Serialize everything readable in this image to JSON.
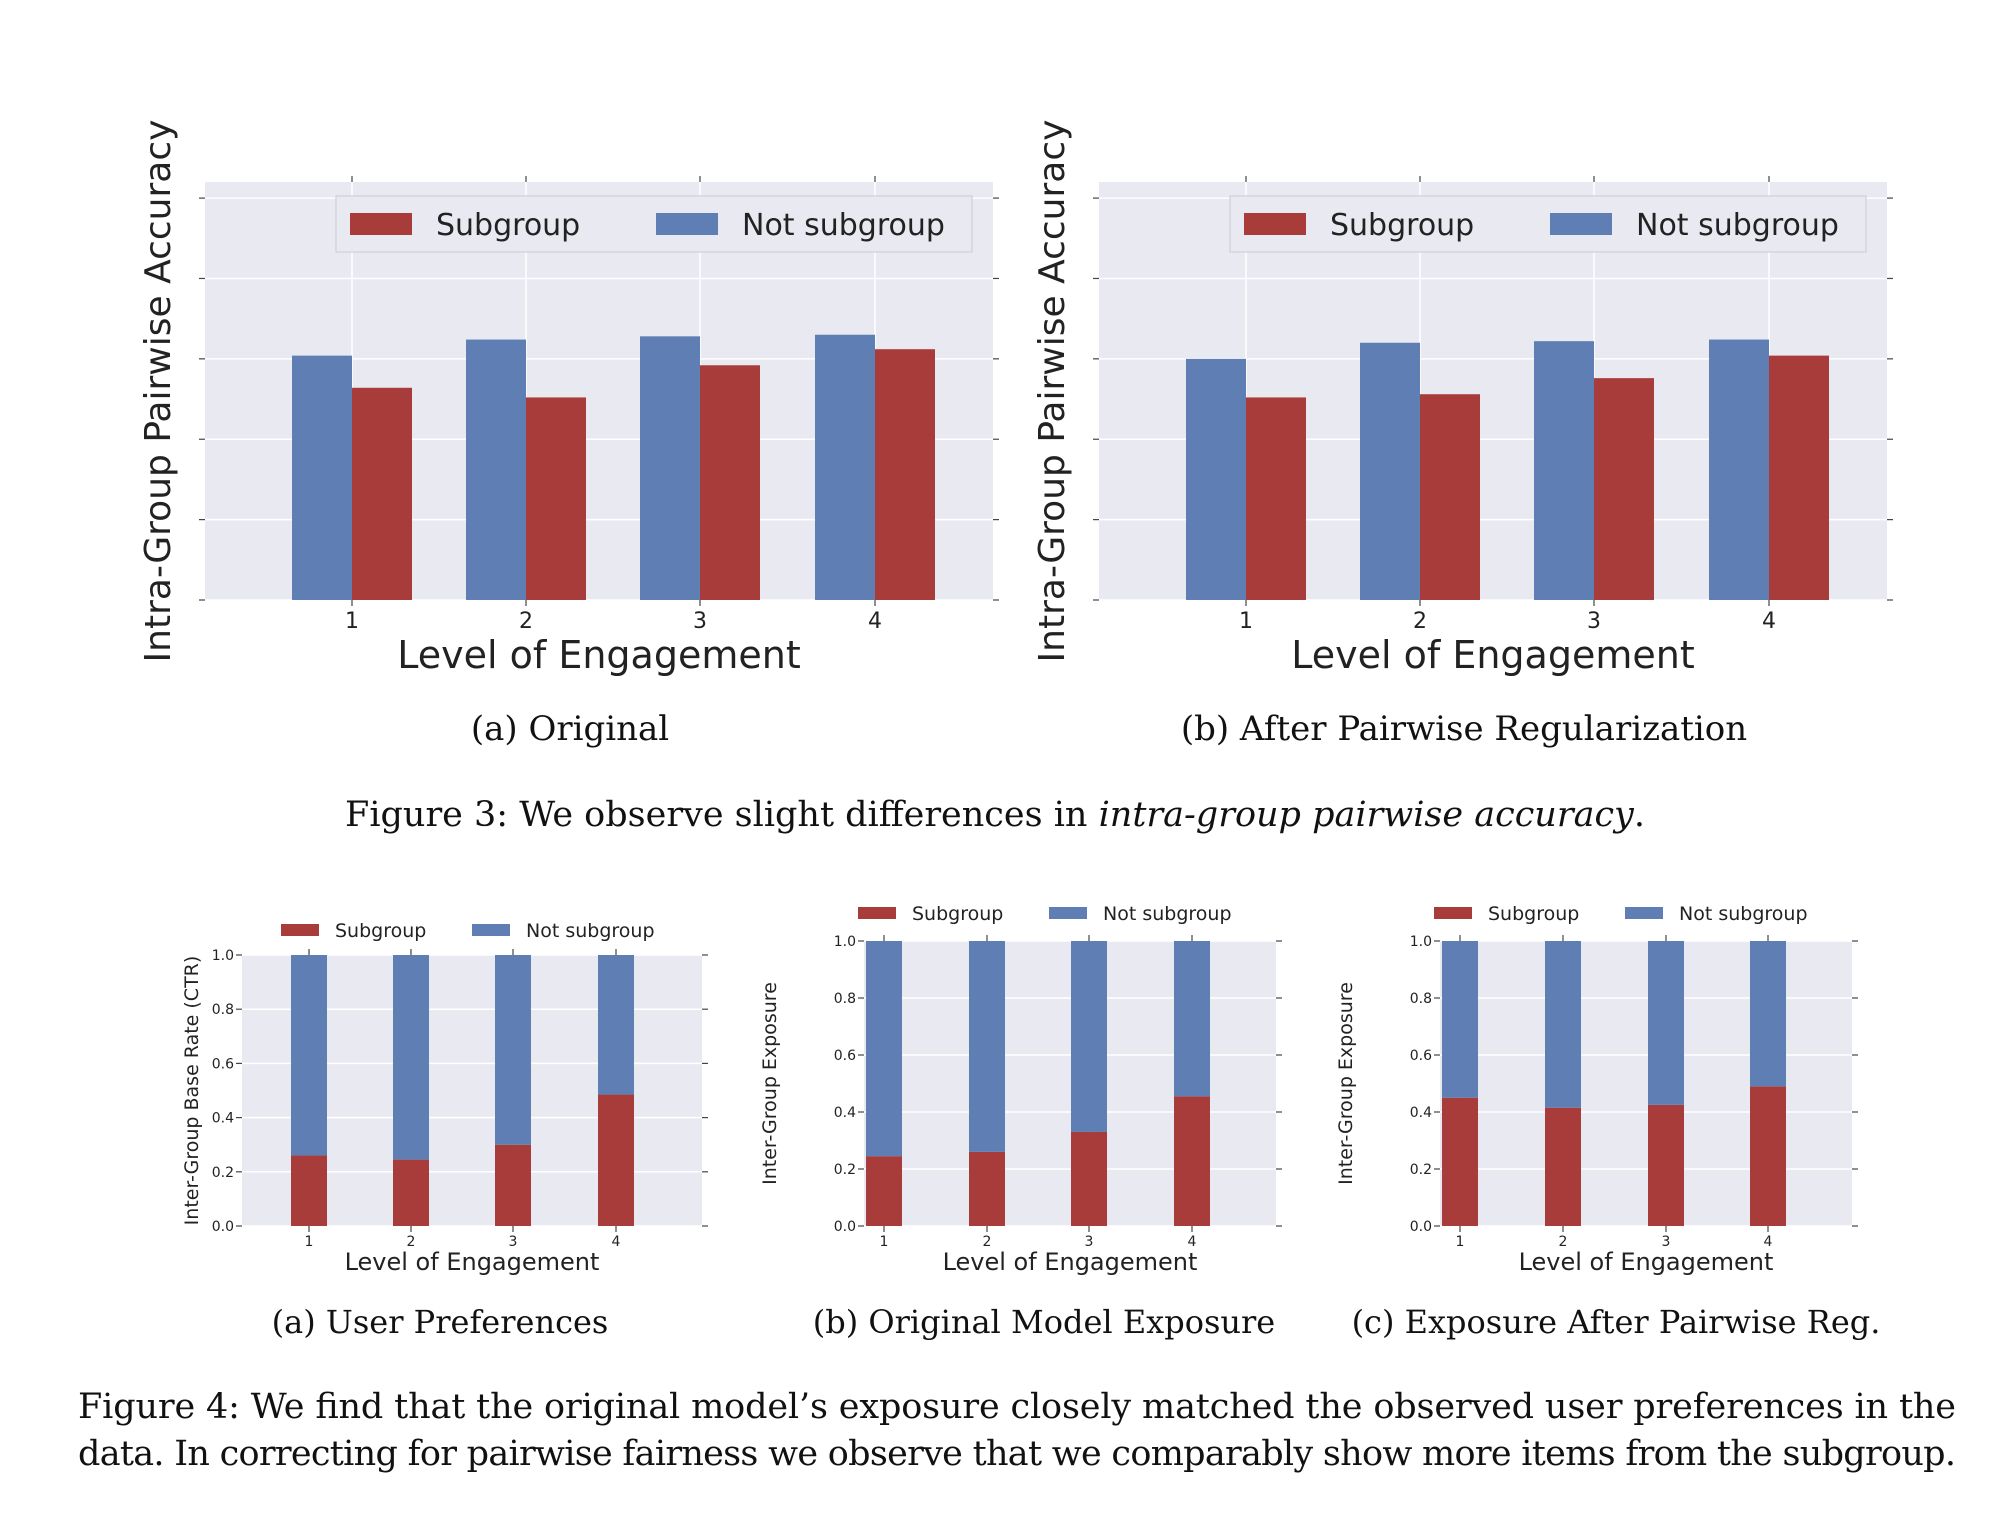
{
  "colors": {
    "subgroup": "#a83c3a",
    "not_subgroup": "#5f7fb4",
    "plot_bg": "#e9e9f1",
    "grid": "#ffffff"
  },
  "figure3": {
    "caption_prefix": "Figure 3: We observe slight differences in ",
    "caption_italic": "intra-group pairwise accuracy",
    "caption_suffix": "."
  },
  "figure4": {
    "caption_line1": "Figure 4: We find that the original model’s exposure closely matched the observed user preferences in the",
    "caption_line2": "data. In correcting for pairwise fairness we observe that we comparably show more items from the subgroup."
  },
  "chart_data": [
    {
      "type": "bar",
      "stacked": false,
      "subcaption": "(a) Original",
      "xlabel": "Level of Engagement",
      "ylabel": "Intra-Group Pairwise Accuracy",
      "categories": [
        "1",
        "2",
        "3",
        "4"
      ],
      "ylim": [
        0,
        1.3
      ],
      "yticks_visible": false,
      "legend": {
        "position": "top-right"
      },
      "grid": true,
      "series": [
        {
          "name": "Subgroup",
          "values": [
            0.66,
            0.63,
            0.73,
            0.78
          ]
        },
        {
          "name": "Not subgroup",
          "values": [
            0.76,
            0.81,
            0.82,
            0.825
          ]
        }
      ]
    },
    {
      "type": "bar",
      "stacked": false,
      "subcaption": "(b) After Pairwise Regularization",
      "xlabel": "Level of Engagement",
      "ylabel": "Intra-Group Pairwise Accuracy",
      "categories": [
        "1",
        "2",
        "3",
        "4"
      ],
      "ylim": [
        0,
        1.3
      ],
      "yticks_visible": false,
      "legend": {
        "position": "top-right"
      },
      "grid": true,
      "series": [
        {
          "name": "Subgroup",
          "values": [
            0.63,
            0.64,
            0.69,
            0.76
          ]
        },
        {
          "name": "Not subgroup",
          "values": [
            0.75,
            0.8,
            0.805,
            0.81
          ]
        }
      ]
    },
    {
      "type": "bar",
      "stacked": true,
      "subcaption": "(a) User Preferences",
      "xlabel": "Level of Engagement",
      "ylabel": "Inter-Group Base Rate (CTR)",
      "categories": [
        "1",
        "2",
        "3",
        "4"
      ],
      "ylim": [
        0,
        1.0
      ],
      "yticks": [
        "0.0",
        "0.2",
        "0.4",
        "0.6",
        "0.8",
        "1.0"
      ],
      "legend": {
        "position": "top"
      },
      "grid": true,
      "series": [
        {
          "name": "Subgroup",
          "values": [
            0.26,
            0.245,
            0.3,
            0.485
          ]
        },
        {
          "name": "Not subgroup",
          "values": [
            0.74,
            0.755,
            0.7,
            0.515
          ]
        }
      ]
    },
    {
      "type": "bar",
      "stacked": true,
      "subcaption": "(b) Original Model Exposure",
      "xlabel": "Level of Engagement",
      "ylabel": "Inter-Group Exposure",
      "categories": [
        "1",
        "2",
        "3",
        "4"
      ],
      "ylim": [
        0,
        1.0
      ],
      "yticks": [
        "0.0",
        "0.2",
        "0.4",
        "0.6",
        "0.8",
        "1.0"
      ],
      "legend": {
        "position": "top"
      },
      "grid": true,
      "series": [
        {
          "name": "Subgroup",
          "values": [
            0.245,
            0.26,
            0.33,
            0.455
          ]
        },
        {
          "name": "Not subgroup",
          "values": [
            0.755,
            0.74,
            0.67,
            0.545
          ]
        }
      ]
    },
    {
      "type": "bar",
      "stacked": true,
      "subcaption": "(c) Exposure After Pairwise Reg.",
      "xlabel": "Level of Engagement",
      "ylabel": "Inter-Group Exposure",
      "categories": [
        "1",
        "2",
        "3",
        "4"
      ],
      "ylim": [
        0,
        1.0
      ],
      "yticks": [
        "0.0",
        "0.2",
        "0.4",
        "0.6",
        "0.8",
        "1.0"
      ],
      "legend": {
        "position": "top"
      },
      "grid": true,
      "series": [
        {
          "name": "Subgroup",
          "values": [
            0.45,
            0.415,
            0.425,
            0.49
          ]
        },
        {
          "name": "Not subgroup",
          "values": [
            0.55,
            0.585,
            0.575,
            0.51
          ]
        }
      ]
    }
  ]
}
